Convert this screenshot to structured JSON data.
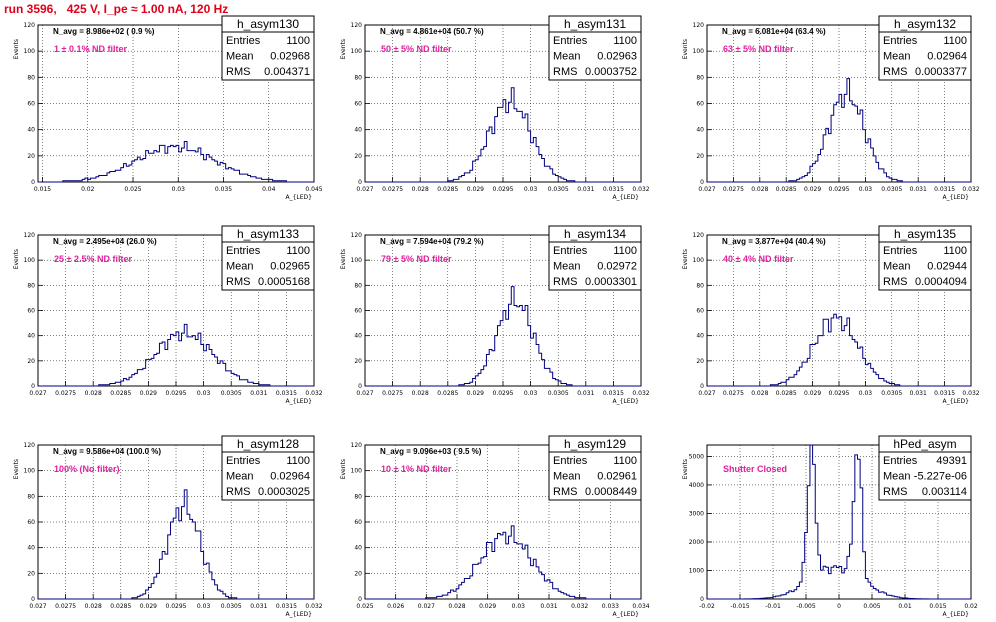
{
  "title": "run 3596,   425 V, I_pe ≈ 1.00 nA, 120 Hz",
  "chart_data": [
    {
      "type": "bar",
      "name": "h_asym130",
      "stats": {
        "entries": "1100",
        "mean": "0.02968",
        "rms": "0.004371"
      },
      "navg": "N_avg = 8.986e+02 ( 0.9 %)",
      "filter": "1 ± 0.1% ND filter",
      "ylabel": "Events",
      "xlabel": "A_{LED}",
      "ylim": [
        0,
        120
      ],
      "yticks": [
        0,
        20,
        40,
        60,
        80,
        100,
        120
      ],
      "xlim": [
        0.0145,
        0.045
      ],
      "xticks": [
        0.015,
        0.02,
        0.025,
        0.03,
        0.035,
        0.04,
        0.045
      ],
      "xticklabels": [
        "0.015",
        "0.02",
        "0.025",
        "0.03",
        "0.035",
        "0.04",
        "0.045"
      ],
      "peaks": [
        {
          "mu": 0.0297,
          "sigma": 0.0044,
          "amp": 27
        }
      ]
    },
    {
      "type": "bar",
      "name": "h_asym131",
      "stats": {
        "entries": "1100",
        "mean": "0.02963",
        "rms": "0.0003752"
      },
      "navg": "N_avg = 4.861e+04 (50.7 %)",
      "filter": "50 ± 5% ND filter",
      "ylabel": "Events",
      "xlabel": "A_{LED}",
      "ylim": [
        0,
        120
      ],
      "yticks": [
        0,
        20,
        40,
        60,
        80,
        100,
        120
      ],
      "xlim": [
        0.027,
        0.032
      ],
      "xticks": [
        0.027,
        0.0275,
        0.028,
        0.0285,
        0.029,
        0.0295,
        0.03,
        0.0305,
        0.031,
        0.0315,
        0.032
      ],
      "xticklabels": [
        "0.027",
        "0.0275",
        "0.028",
        "0.0285",
        "0.029",
        "0.0295",
        "0.03",
        "0.0305",
        "0.031",
        "0.0315",
        "0.032"
      ],
      "peaks": [
        {
          "mu": 0.02963,
          "sigma": 0.000375,
          "amp": 62
        }
      ]
    },
    {
      "type": "bar",
      "name": "h_asym132",
      "stats": {
        "entries": "1100",
        "mean": "0.02964",
        "rms": "0.0003377"
      },
      "navg": "N_avg = 6.081e+04 (63.4 %)",
      "filter": "63 ± 5% ND filter",
      "ylabel": "Events",
      "xlabel": "A_{LED}",
      "ylim": [
        0,
        120
      ],
      "yticks": [
        0,
        20,
        40,
        60,
        80,
        100,
        120
      ],
      "xlim": [
        0.027,
        0.032
      ],
      "xticks": [
        0.027,
        0.0275,
        0.028,
        0.0285,
        0.029,
        0.0295,
        0.03,
        0.0305,
        0.031,
        0.0315,
        0.032
      ],
      "xticklabels": [
        "0.027",
        "0.0275",
        "0.028",
        "0.0285",
        "0.029",
        "0.0295",
        "0.03",
        "0.0305",
        "0.031",
        "0.0315",
        "0.032"
      ],
      "peaks": [
        {
          "mu": 0.02964,
          "sigma": 0.00034,
          "amp": 68
        }
      ]
    },
    {
      "type": "bar",
      "name": "h_asym133",
      "stats": {
        "entries": "1100",
        "mean": "0.02965",
        "rms": "0.0005168"
      },
      "navg": "N_avg = 2.495e+04 (26.0 %)",
      "filter": "25 ± 2.5% ND filter",
      "ylabel": "Events",
      "xlabel": "A_{LED}",
      "ylim": [
        0,
        120
      ],
      "yticks": [
        0,
        20,
        40,
        60,
        80,
        100,
        120
      ],
      "xlim": [
        0.027,
        0.032
      ],
      "xticks": [
        0.027,
        0.0275,
        0.028,
        0.0285,
        0.029,
        0.0295,
        0.03,
        0.0305,
        0.031,
        0.0315,
        0.032
      ],
      "xticklabels": [
        "0.027",
        "0.0275",
        "0.028",
        "0.0285",
        "0.029",
        "0.0295",
        "0.03",
        "0.0305",
        "0.031",
        "0.0315",
        "0.032"
      ],
      "peaks": [
        {
          "mu": 0.02965,
          "sigma": 0.00052,
          "amp": 42
        }
      ]
    },
    {
      "type": "bar",
      "name": "h_asym134",
      "stats": {
        "entries": "1100",
        "mean": "0.02972",
        "rms": "0.0003301"
      },
      "navg": "N_avg = 7.594e+04 (79.2 %)",
      "filter": "79 ± 5% ND filter",
      "ylabel": "Events",
      "xlabel": "A_{LED}",
      "ylim": [
        0,
        120
      ],
      "yticks": [
        0,
        20,
        40,
        60,
        80,
        100,
        120
      ],
      "xlim": [
        0.027,
        0.032
      ],
      "xticks": [
        0.027,
        0.0275,
        0.028,
        0.0285,
        0.029,
        0.0295,
        0.03,
        0.0305,
        0.031,
        0.0315,
        0.032
      ],
      "xticklabels": [
        "0.027",
        "0.0275",
        "0.028",
        "0.0285",
        "0.029",
        "0.0295",
        "0.03",
        "0.0305",
        "0.031",
        "0.0315",
        "0.032"
      ],
      "peaks": [
        {
          "mu": 0.02972,
          "sigma": 0.00033,
          "amp": 68
        }
      ]
    },
    {
      "type": "bar",
      "name": "h_asym135",
      "stats": {
        "entries": "1100",
        "mean": "0.02944",
        "rms": "0.0004094"
      },
      "navg": "N_avg = 3.877e+04 (40.4 %)",
      "filter": "40 ± 4% ND filter",
      "ylabel": "Events",
      "xlabel": "A_{LED}",
      "ylim": [
        0,
        120
      ],
      "yticks": [
        0,
        20,
        40,
        60,
        80,
        100,
        120
      ],
      "xlim": [
        0.027,
        0.032
      ],
      "xticks": [
        0.027,
        0.0275,
        0.028,
        0.0285,
        0.029,
        0.0295,
        0.03,
        0.0305,
        0.031,
        0.0315,
        0.032
      ],
      "xticklabels": [
        "0.027",
        "0.0275",
        "0.028",
        "0.0285",
        "0.029",
        "0.0295",
        "0.03",
        "0.0305",
        "0.031",
        "0.0315",
        "0.032"
      ],
      "peaks": [
        {
          "mu": 0.02944,
          "sigma": 0.00041,
          "amp": 54
        }
      ]
    },
    {
      "type": "bar",
      "name": "h_asym128",
      "stats": {
        "entries": "1100",
        "mean": "0.02964",
        "rms": "0.0003025"
      },
      "navg": "N_avg = 9.586e+04 (100.0 %)",
      "filter": "100% (No filter)",
      "ylabel": "Events",
      "xlabel": "A_{LED}",
      "ylim": [
        0,
        120
      ],
      "yticks": [
        0,
        20,
        40,
        60,
        80,
        100,
        120
      ],
      "xlim": [
        0.027,
        0.032
      ],
      "xticks": [
        0.027,
        0.0275,
        0.028,
        0.0285,
        0.029,
        0.0295,
        0.03,
        0.0305,
        0.031,
        0.0315,
        0.032
      ],
      "xticklabels": [
        "0.027",
        "0.0275",
        "0.028",
        "0.0285",
        "0.029",
        "0.0295",
        "0.03",
        "0.0305",
        "0.031",
        "0.0315",
        "0.032"
      ],
      "peaks": [
        {
          "mu": 0.02964,
          "sigma": 0.0003,
          "amp": 73
        }
      ]
    },
    {
      "type": "bar",
      "name": "h_asym129",
      "stats": {
        "entries": "1100",
        "mean": "0.02961",
        "rms": "0.0008449"
      },
      "navg": "N_avg = 9.096e+03 ( 9.5 %)",
      "filter": "10 ± 1% ND filter",
      "ylabel": "Events",
      "xlabel": "A_{LED}",
      "ylim": [
        0,
        120
      ],
      "yticks": [
        0,
        20,
        40,
        60,
        80,
        100,
        120
      ],
      "xlim": [
        0.025,
        0.034
      ],
      "xticks": [
        0.025,
        0.026,
        0.027,
        0.028,
        0.029,
        0.03,
        0.031,
        0.032,
        0.033,
        0.034
      ],
      "xticklabels": [
        "0.025",
        "0.026",
        "0.027",
        "0.028",
        "0.029",
        "0.03",
        "0.031",
        "0.032",
        "0.033",
        "0.034"
      ],
      "peaks": [
        {
          "mu": 0.02961,
          "sigma": 0.00085,
          "amp": 50
        }
      ]
    },
    {
      "type": "bar",
      "name": "hPed_asym",
      "stats": {
        "entries": "49391",
        "mean": "-5.227e-06",
        "rms": "0.003114"
      },
      "navg": "",
      "filter": "Shutter Closed",
      "ylabel": "Events",
      "xlabel": "A_{LED}",
      "ylim": [
        0,
        5400
      ],
      "yticks": [
        0,
        1000,
        2000,
        3000,
        4000,
        5000
      ],
      "xlim": [
        -0.02,
        0.02
      ],
      "xticks": [
        -0.02,
        -0.015,
        -0.01,
        -0.005,
        0,
        0.005,
        0.01,
        0.015,
        0.02
      ],
      "xticklabels": [
        "-0.02",
        "-0.015",
        "-0.01",
        "-0.005",
        "0",
        "0.005",
        "0.01",
        "0.015",
        "0.02"
      ],
      "peaks": [
        {
          "mu": -0.0042,
          "sigma": 0.0006,
          "amp": 4800
        },
        {
          "mu": 0.0028,
          "sigma": 0.0006,
          "amp": 4500
        },
        {
          "mu": -0.0005,
          "sigma": 0.004,
          "amp": 1100
        }
      ]
    }
  ]
}
